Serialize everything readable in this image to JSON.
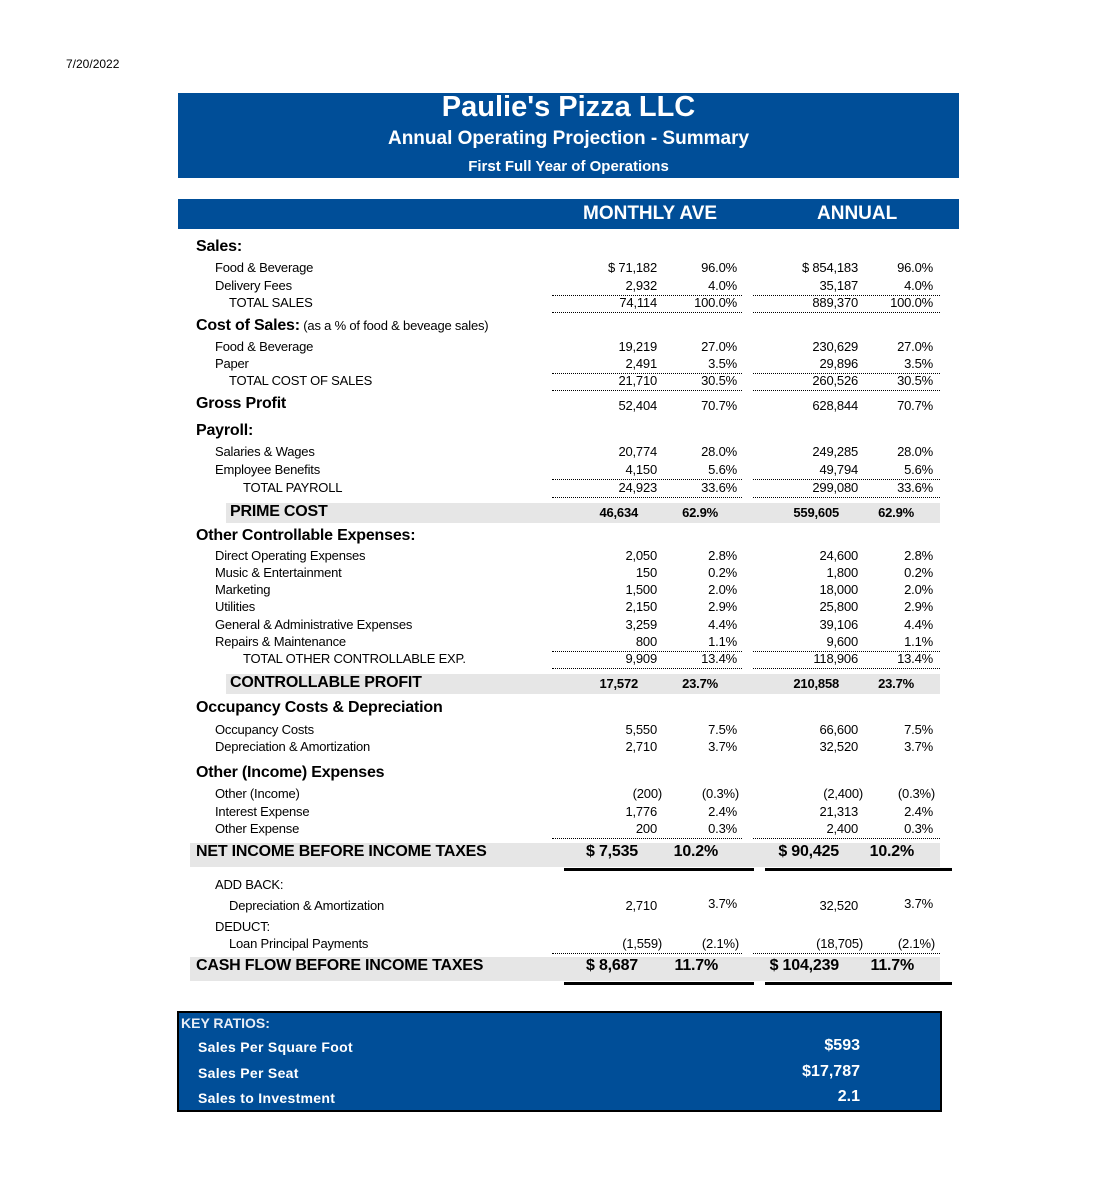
{
  "date": "7/20/2022",
  "header": {
    "company": "Paulie's Pizza LLC",
    "subtitle": "Annual Operating Projection - Summary",
    "period": "First Full Year of Operations"
  },
  "columns": {
    "monthly": "MONTHLY AVE",
    "annual": "ANNUAL"
  },
  "rows": [
    {
      "type": "sec",
      "label": "Sales:"
    },
    {
      "type": "item",
      "label": "Food & Beverage",
      "m": "$ 71,182",
      "mp": "96.0%",
      "a": "$ 854,183",
      "ap": "96.0%"
    },
    {
      "type": "item",
      "label": "Delivery Fees",
      "m": "2,932",
      "mp": "4.0%",
      "a": "35,187",
      "ap": "4.0%",
      "ul": true
    },
    {
      "type": "total",
      "label": "TOTAL SALES",
      "m": "74,114",
      "mp": "100.0%",
      "a": "889,370",
      "ap": "100.0%",
      "ul": true
    },
    {
      "type": "sec",
      "label": "Cost of Sales:",
      "note": " (as a % of food & beveage sales)"
    },
    {
      "type": "item",
      "label": "Food & Beverage",
      "m": "19,219",
      "mp": "27.0%",
      "a": "230,629",
      "ap": "27.0%"
    },
    {
      "type": "item",
      "label": "Paper",
      "m": "2,491",
      "mp": "3.5%",
      "a": "29,896",
      "ap": "3.5%",
      "ul": true
    },
    {
      "type": "total",
      "label": "TOTAL COST OF SALES",
      "m": "21,710",
      "mp": "30.5%",
      "a": "260,526",
      "ap": "30.5%",
      "ul": true
    },
    {
      "type": "secv",
      "label": "Gross Profit",
      "m": "52,404",
      "mp": "70.7%",
      "a": "628,844",
      "ap": "70.7%"
    },
    {
      "type": "sec",
      "label": "Payroll:"
    },
    {
      "type": "item",
      "label": "Salaries & Wages",
      "m": "20,774",
      "mp": "28.0%",
      "a": "249,285",
      "ap": "28.0%"
    },
    {
      "type": "item",
      "label": "Employee Benefits",
      "m": "4,150",
      "mp": "5.6%",
      "a": "49,794",
      "ap": "5.6%",
      "ul": true
    },
    {
      "type": "total2",
      "label": "TOTAL PAYROLL",
      "m": "24,923",
      "mp": "33.6%",
      "a": "299,080",
      "ap": "33.6%",
      "ul": true
    },
    {
      "type": "band",
      "label": "PRIME COST",
      "m": "46,634",
      "mp": "62.9%",
      "a": "559,605",
      "ap": "62.9%"
    },
    {
      "type": "sec",
      "label": "Other Controllable Expenses:"
    },
    {
      "type": "item",
      "label": "Direct Operating Expenses",
      "m": "2,050",
      "mp": "2.8%",
      "a": "24,600",
      "ap": "2.8%"
    },
    {
      "type": "item",
      "label": "Music & Entertainment",
      "m": "150",
      "mp": "0.2%",
      "a": "1,800",
      "ap": "0.2%"
    },
    {
      "type": "item",
      "label": "Marketing",
      "m": "1,500",
      "mp": "2.0%",
      "a": "18,000",
      "ap": "2.0%"
    },
    {
      "type": "item",
      "label": "Utilities",
      "m": "2,150",
      "mp": "2.9%",
      "a": "25,800",
      "ap": "2.9%"
    },
    {
      "type": "item",
      "label": "General & Administrative Expenses",
      "m": "3,259",
      "mp": "4.4%",
      "a": "39,106",
      "ap": "4.4%"
    },
    {
      "type": "item",
      "label": "Repairs & Maintenance",
      "m": "800",
      "mp": "1.1%",
      "a": "9,600",
      "ap": "1.1%",
      "ul": true
    },
    {
      "type": "total2",
      "label": "TOTAL OTHER CONTROLLABLE EXP.",
      "m": "9,909",
      "mp": "13.4%",
      "a": "118,906",
      "ap": "13.4%",
      "ul": true
    },
    {
      "type": "band",
      "label": "CONTROLLABLE PROFIT",
      "m": "17,572",
      "mp": "23.7%",
      "a": "210,858",
      "ap": "23.7%"
    },
    {
      "type": "sec",
      "label": "Occupancy Costs & Depreciation"
    },
    {
      "type": "item",
      "label": "Occupancy Costs",
      "m": "5,550",
      "mp": "7.5%",
      "a": "66,600",
      "ap": "7.5%"
    },
    {
      "type": "item",
      "label": "Depreciation & Amortization",
      "m": "2,710",
      "mp": "3.7%",
      "a": "32,520",
      "ap": "3.7%"
    },
    {
      "type": "sec",
      "label": "Other (Income) Expenses"
    },
    {
      "type": "item",
      "label": "Other (Income)",
      "m": "(200)",
      "mp": "(0.3%)",
      "a": "(2,400)",
      "ap": "(0.3%)",
      "paren": true
    },
    {
      "type": "item",
      "label": "Interest Expense",
      "m": "1,776",
      "mp": "2.4%",
      "a": "21,313",
      "ap": "2.4%"
    },
    {
      "type": "item",
      "label": "Other Expense",
      "m": "200",
      "mp": "0.3%",
      "a": "2,400",
      "ap": "0.3%",
      "ul": true
    },
    {
      "type": "bigband",
      "label": "NET INCOME BEFORE INCOME TAXES",
      "m": "$ 7,535",
      "mp": "10.2%",
      "a": "$ 90,425",
      "ap": "10.2%"
    },
    {
      "type": "item",
      "label": "ADD BACK:"
    },
    {
      "type": "total",
      "label": "Depreciation & Amortization",
      "m": "2,710",
      "mp": "3.7%",
      "a": "32,520",
      "ap": "3.7%"
    },
    {
      "type": "item",
      "label": "DEDUCT:"
    },
    {
      "type": "total",
      "label": "Loan Principal Payments",
      "m": "(1,559)",
      "mp": "(2.1%)",
      "a": "(18,705)",
      "ap": "(2.1%)",
      "ul": true,
      "paren": true
    },
    {
      "type": "bigband",
      "label": "CASH FLOW BEFORE INCOME TAXES",
      "m": "$  8,687",
      "mp": "11.7%",
      "a": "$  104,239",
      "ap": "11.7%"
    }
  ],
  "key_ratios": {
    "title": "KEY RATIOS:",
    "items": [
      {
        "label": "Sales Per Square Foot",
        "value": "$593"
      },
      {
        "label": "Sales Per Seat",
        "value": "$17,787"
      },
      {
        "label": "Sales to Investment",
        "value": "2.1"
      }
    ]
  },
  "colors": {
    "header_blue": "#004e98",
    "band_gray": "#e6e6e6"
  }
}
